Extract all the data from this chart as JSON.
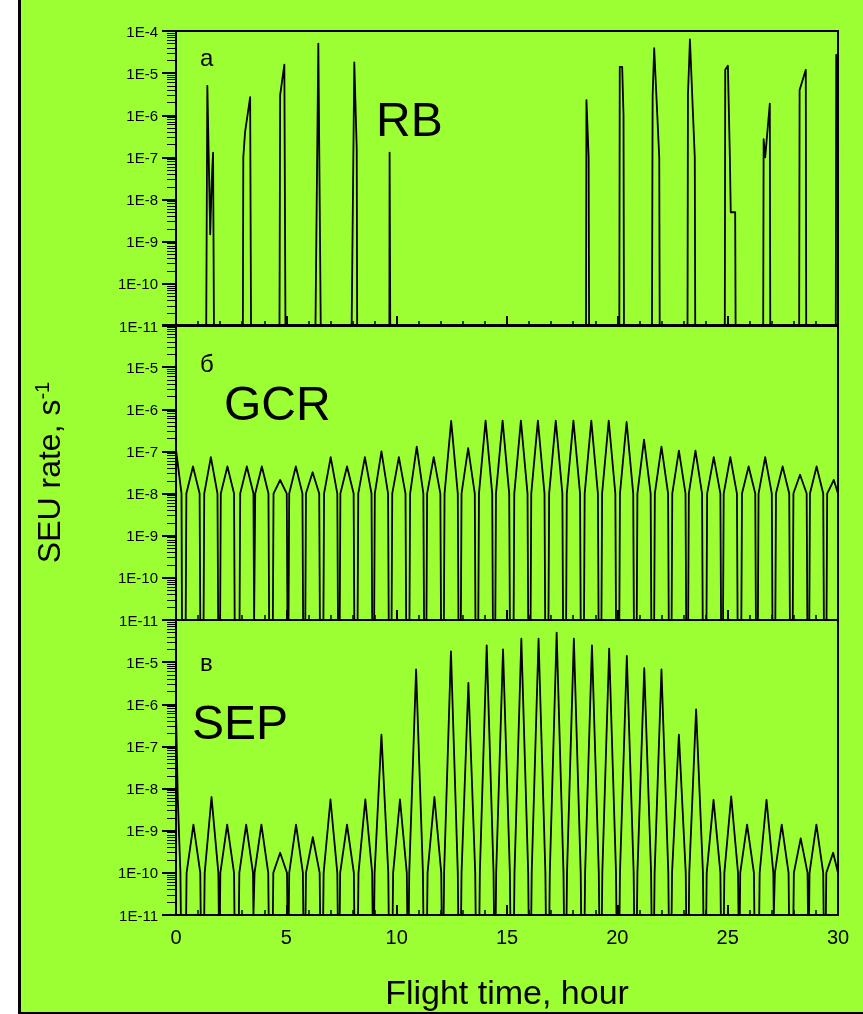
{
  "chart_data": [
    {
      "type": "line",
      "annotations": [
        "a",
        "RB"
      ],
      "xlim": [
        0,
        30
      ],
      "xticks": [
        0,
        5,
        10,
        15,
        20,
        25,
        30
      ],
      "log": true,
      "ylim": [
        1e-11,
        0.0001
      ],
      "yticks": [
        {
          "value": 1e-11,
          "label": "1E-11"
        },
        {
          "value": 1e-10,
          "label": "1E-10"
        },
        {
          "value": 1e-09,
          "label": "1E-9"
        },
        {
          "value": 1e-08,
          "label": "1E-8"
        },
        {
          "value": 1e-07,
          "label": "1E-7"
        },
        {
          "value": 1e-06,
          "label": "1E-6"
        },
        {
          "value": 1e-05,
          "label": "1E-5"
        },
        {
          "value": 0.0001,
          "label": "1E-4"
        }
      ],
      "tick_labels": "y",
      "marker": "none",
      "line_style": "solid",
      "series": [
        {
          "color": "#000000",
          "x": [
            1.37,
            1.42,
            1.55,
            1.62,
            1.68,
            1.72,
            3.03,
            3.05,
            3.13,
            3.36,
            3.4,
            4.69,
            4.72,
            4.91,
            4.96,
            6.32,
            6.45,
            6.56,
            7.96,
            8.08,
            8.19,
            8.21,
            9.67,
            9.68,
            9.71,
            18.58,
            18.6,
            18.7,
            18.72,
            20.09,
            20.11,
            20.22,
            20.28,
            20.3,
            21.57,
            21.6,
            21.67,
            21.9,
            21.92,
            23.18,
            23.2,
            23.29,
            23.51,
            23.53,
            24.87,
            24.89,
            25.01,
            25.1,
            25.14,
            25.34,
            25.36,
            26.61,
            26.63,
            26.7,
            26.91,
            26.93,
            28.24,
            28.26,
            28.54,
            28.56,
            29.9,
            29.92,
            30
          ],
          "values": [
            1e-11,
            5e-06,
            1.5e-09,
            3e-08,
            1.3e-07,
            1e-11,
            1e-11,
            1e-07,
            4e-07,
            2.7e-06,
            1e-11,
            1e-11,
            3e-06,
            1.6e-05,
            1e-11,
            1e-11,
            5e-05,
            1e-11,
            1e-11,
            1.8e-05,
            1.6e-07,
            1e-11,
            1e-11,
            1.3e-07,
            1e-11,
            1e-11,
            2.3e-06,
            1e-07,
            1e-11,
            1e-11,
            1.4e-05,
            1.4e-05,
            1e-06,
            1e-11,
            1e-11,
            3e-06,
            3.9e-05,
            1e-07,
            1e-11,
            1e-11,
            3e-06,
            6.3e-05,
            1e-07,
            1e-11,
            1e-11,
            1.2e-05,
            1.5e-05,
            1e-07,
            5e-09,
            5e-09,
            1e-11,
            1e-11,
            2.7e-07,
            1e-07,
            1.9e-06,
            1e-11,
            1e-11,
            4e-06,
            1.2e-05,
            1e-11,
            1e-11,
            2.7e-05,
            2.7e-05
          ]
        }
      ]
    },
    {
      "type": "line",
      "annotations": [
        "б",
        "GCR"
      ],
      "ylabel": "SEU rate, s$^{-1}$",
      "xlim": [
        0,
        30
      ],
      "xticks": [
        0,
        5,
        10,
        15,
        20,
        25,
        30
      ],
      "log": true,
      "ylim": [
        1e-11,
        0.0001
      ],
      "yticks": [
        {
          "value": 1e-11,
          "label": "1E-11"
        },
        {
          "value": 1e-10,
          "label": "1E-10"
        },
        {
          "value": 1e-09,
          "label": "1E-9"
        },
        {
          "value": 1e-08,
          "label": "1E-8"
        },
        {
          "value": 1e-07,
          "label": "1E-7"
        },
        {
          "value": 1e-06,
          "label": "1E-6"
        },
        {
          "value": 1e-05,
          "label": "1E-5"
        },
        {
          "value": 0.0001,
          "label": null
        }
      ],
      "tick_labels": "y",
      "marker": "none",
      "line_style": "solid",
      "series": [
        {
          "color": "#000000",
          "x": [
            0,
            0.25,
            0.27,
            0.44,
            0.47,
            0.77,
            1.07,
            1.1,
            1.25,
            1.28,
            1.58,
            1.88,
            1.91,
            2.0,
            2.03,
            2.33,
            2.63,
            2.66,
            2.88,
            2.91,
            3.21,
            3.51,
            3.54,
            3.56,
            3.59,
            3.89,
            4.19,
            4.22,
            4.39,
            4.42,
            4.72,
            5.02,
            5.05,
            5.1,
            5.13,
            5.43,
            5.73,
            5.76,
            5.86,
            5.89,
            6.19,
            6.49,
            6.52,
            6.68,
            6.71,
            7.01,
            7.31,
            7.34,
            7.42,
            7.45,
            7.75,
            8.05,
            8.08,
            8.23,
            8.26,
            8.56,
            8.86,
            8.89,
            8.98,
            9.01,
            9.31,
            9.61,
            9.64,
            9.77,
            9.8,
            10.1,
            10.4,
            10.43,
            10.58,
            10.61,
            10.91,
            11.21,
            11.24,
            11.35,
            11.38,
            11.68,
            11.98,
            12.01,
            12.14,
            12.17,
            12.47,
            12.77,
            12.8,
            12.91,
            12.94,
            13.24,
            13.54,
            13.57,
            13.7,
            13.73,
            14.03,
            14.33,
            14.36,
            14.47,
            14.5,
            14.8,
            15.1,
            15.13,
            15.3,
            15.33,
            15.63,
            15.93,
            15.96,
            16.07,
            16.1,
            16.4,
            16.7,
            16.73,
            16.88,
            16.91,
            17.21,
            17.51,
            17.54,
            17.68,
            17.71,
            18.01,
            18.31,
            18.34,
            18.49,
            18.52,
            18.82,
            19.12,
            19.15,
            19.28,
            19.31,
            19.61,
            19.91,
            19.94,
            20.09,
            20.12,
            20.42,
            20.72,
            20.75,
            20.88,
            20.91,
            21.21,
            21.51,
            21.54,
            21.67,
            21.7,
            22,
            22.3,
            22.33,
            22.46,
            22.49,
            22.79,
            23.09,
            23.12,
            23.21,
            23.24,
            23.54,
            23.84,
            23.87,
            24.04,
            24.07,
            24.37,
            24.67,
            24.7,
            24.79,
            24.82,
            25.12,
            25.42,
            25.45,
            25.62,
            25.65,
            25.95,
            26.25,
            26.28,
            26.37,
            26.4,
            26.7,
            27,
            27.03,
            27.16,
            27.19,
            27.49,
            27.79,
            27.82,
            27.95,
            27.98,
            28.28,
            28.58,
            28.61,
            28.7,
            28.73,
            29.03,
            29.33,
            29.36,
            29.48,
            29.51,
            29.81,
            30
          ],
          "values": [
            1.1e-07,
            1e-08,
            1e-11,
            1e-11,
            1e-08,
            4.4e-08,
            1e-08,
            1e-11,
            1e-11,
            1e-08,
            7.3e-08,
            1e-08,
            1e-11,
            1e-11,
            1e-08,
            4.4e-08,
            1e-08,
            1e-11,
            1e-11,
            1e-08,
            4.4e-08,
            1e-08,
            1e-11,
            1e-11,
            1e-08,
            4.4e-08,
            1e-08,
            1e-11,
            1e-11,
            1e-08,
            2.1e-08,
            1e-08,
            1e-11,
            1e-11,
            1e-08,
            4.4e-08,
            1e-08,
            1e-11,
            1e-11,
            1e-08,
            3.2e-08,
            1e-08,
            1e-11,
            1e-11,
            1e-08,
            7.3e-08,
            1e-08,
            1e-11,
            1e-11,
            1e-08,
            4.4e-08,
            1e-08,
            1e-11,
            1e-11,
            1e-08,
            7.3e-08,
            1e-08,
            1e-11,
            1e-11,
            1e-08,
            1e-07,
            1e-08,
            1e-11,
            1e-11,
            1e-08,
            7.3e-08,
            1e-08,
            1e-11,
            1e-11,
            1e-08,
            1.3e-07,
            1e-08,
            1e-11,
            1e-11,
            1e-08,
            7.3e-08,
            1e-08,
            1e-11,
            1e-11,
            1e-08,
            5.3e-07,
            1e-08,
            1e-11,
            1e-11,
            1e-08,
            1.2e-07,
            1e-08,
            1e-11,
            1e-11,
            1e-08,
            5.4e-07,
            1e-08,
            1e-11,
            1e-11,
            1e-08,
            5.4e-07,
            1e-08,
            1e-11,
            1e-11,
            1e-08,
            5.4e-07,
            1e-08,
            1e-11,
            1e-11,
            1e-08,
            5.4e-07,
            1e-08,
            1e-11,
            1e-11,
            1e-08,
            5.4e-07,
            1e-08,
            1e-11,
            1e-11,
            1e-08,
            5.4e-07,
            1e-08,
            1e-11,
            1e-11,
            1e-08,
            5.4e-07,
            1e-08,
            1e-11,
            1e-11,
            1e-08,
            5.4e-07,
            1e-08,
            1e-11,
            1e-11,
            1e-08,
            5e-07,
            1e-08,
            1e-11,
            1e-11,
            1e-08,
            1.9e-07,
            1e-08,
            1e-11,
            1e-11,
            1e-08,
            1.3e-07,
            1e-08,
            1e-11,
            1e-11,
            1e-08,
            1.05e-07,
            1e-08,
            1e-11,
            1e-11,
            1e-08,
            1.05e-07,
            1e-08,
            1e-11,
            1e-11,
            1e-08,
            7.3e-08,
            1e-08,
            1e-11,
            1e-11,
            1e-08,
            7.3e-08,
            1e-08,
            1e-11,
            1e-11,
            1e-08,
            4.4e-08,
            1e-08,
            1e-11,
            1e-11,
            1e-08,
            7.3e-08,
            1e-08,
            1e-11,
            1e-11,
            1e-08,
            4.4e-08,
            1e-08,
            1e-11,
            1e-11,
            1e-08,
            2.8e-08,
            1e-08,
            1e-11,
            1e-11,
            1e-08,
            4.4e-08,
            1e-08,
            1e-11,
            1e-11,
            1e-08,
            2.1e-08,
            1e-08
          ]
        }
      ]
    },
    {
      "type": "line",
      "annotations": [
        "в",
        "SEP"
      ],
      "xlabel": "Flight time, hour",
      "xlim": [
        0,
        30
      ],
      "xticks": [
        0,
        5,
        10,
        15,
        20,
        25,
        30
      ],
      "log": true,
      "ylim": [
        1e-11,
        0.0001
      ],
      "yticks": [
        {
          "value": 1e-11,
          "label": "1E-11"
        },
        {
          "value": 1e-10,
          "label": "1E-10"
        },
        {
          "value": 1e-09,
          "label": "1E-9"
        },
        {
          "value": 1e-08,
          "label": "1E-8"
        },
        {
          "value": 1e-07,
          "label": "1E-7"
        },
        {
          "value": 1e-06,
          "label": "1E-6"
        },
        {
          "value": 1e-05,
          "label": "1E-5"
        },
        {
          "value": 0.0001,
          "label": null
        }
      ],
      "marker": "none",
      "line_style": "solid",
      "series": [
        {
          "color": "#000000",
          "x": [
            0,
            0.08,
            0.2,
            0.22,
            0.46,
            0.48,
            0.79,
            1.1,
            1.12,
            1.28,
            1.3,
            1.61,
            1.92,
            1.94,
            1.99,
            2.01,
            2.32,
            2.63,
            2.65,
            2.85,
            2.87,
            3.18,
            3.49,
            3.51,
            3.54,
            3.56,
            3.87,
            4.18,
            4.2,
            4.39,
            4.41,
            4.72,
            5.03,
            5.05,
            5.11,
            5.13,
            5.44,
            5.75,
            5.77,
            5.87,
            5.89,
            6.2,
            6.51,
            6.53,
            6.67,
            6.69,
            7,
            7.31,
            7.33,
            7.42,
            7.44,
            7.75,
            8.06,
            8.08,
            8.25,
            8.27,
            8.58,
            8.89,
            8.91,
            8.98,
            9,
            9.31,
            9.62,
            9.64,
            9.82,
            9.84,
            10.15,
            10.46,
            10.48,
            10.55,
            10.57,
            10.88,
            11.19,
            11.21,
            11.38,
            11.4,
            11.71,
            12.02,
            12.04,
            12.13,
            12.15,
            12.46,
            12.77,
            12.79,
            12.92,
            12.94,
            13.25,
            13.56,
            13.58,
            13.75,
            13.77,
            14.08,
            14.39,
            14.41,
            14.49,
            14.51,
            14.82,
            15.13,
            15.15,
            15.32,
            15.34,
            15.65,
            15.96,
            15.98,
            16.1,
            16.12,
            16.43,
            16.74,
            16.76,
            16.92,
            16.94,
            17.25,
            17.56,
            17.58,
            17.7,
            17.72,
            18.03,
            18.34,
            18.36,
            18.52,
            18.54,
            18.85,
            19.16,
            19.18,
            19.3,
            19.32,
            19.63,
            19.94,
            19.96,
            20.1,
            20.12,
            20.43,
            20.74,
            20.76,
            20.89,
            20.91,
            21.22,
            21.53,
            21.55,
            21.67,
            21.69,
            22,
            22.31,
            22.33,
            22.46,
            22.48,
            22.79,
            23.1,
            23.12,
            23.24,
            23.26,
            23.57,
            23.88,
            23.9,
            24.03,
            24.05,
            24.36,
            24.67,
            24.69,
            24.83,
            24.85,
            25.16,
            25.47,
            25.49,
            25.55,
            25.57,
            25.88,
            26.19,
            26.21,
            26.43,
            26.45,
            26.76,
            27.07,
            27.09,
            27.12,
            27.14,
            27.45,
            27.76,
            27.78,
            27.98,
            28,
            28.31,
            28.62,
            28.64,
            28.69,
            28.71,
            29.02,
            29.33,
            29.35,
            29.45,
            29.47,
            29.78,
            30
          ],
          "values": [
            7.2e-07,
            6e-09,
            1e-10,
            1e-11,
            1e-11,
            1e-10,
            1.4e-09,
            1e-10,
            1e-11,
            1e-11,
            1e-10,
            6.3e-09,
            1e-10,
            1e-11,
            1e-11,
            1e-10,
            1.4e-09,
            1e-10,
            1e-11,
            1e-11,
            1e-10,
            1.4e-09,
            1e-10,
            1e-11,
            1e-11,
            1e-10,
            1.4e-09,
            1e-10,
            1e-11,
            1e-11,
            1e-10,
            3e-10,
            1e-10,
            1e-11,
            1e-11,
            1e-10,
            1.4e-09,
            1e-10,
            1e-11,
            1e-11,
            1e-10,
            7e-10,
            1e-10,
            1e-11,
            1e-11,
            1e-10,
            5.5e-09,
            1e-10,
            1e-11,
            1e-11,
            1e-10,
            1.4e-09,
            1e-10,
            1e-11,
            1e-11,
            1e-10,
            5.5e-09,
            1e-10,
            1e-11,
            1e-11,
            1e-10,
            1.9e-07,
            1e-10,
            1e-11,
            1e-11,
            1e-10,
            5.5e-09,
            1e-10,
            1e-11,
            1e-11,
            1e-10,
            6.7e-06,
            1e-10,
            1e-11,
            1e-11,
            1e-10,
            6.3e-09,
            1e-10,
            1e-11,
            1e-11,
            1e-10,
            1.8e-05,
            1e-10,
            1e-11,
            1e-11,
            1e-10,
            3.2e-06,
            1e-10,
            1e-11,
            1e-11,
            1e-10,
            2.5e-05,
            1e-10,
            1e-11,
            1e-11,
            1e-10,
            2e-05,
            1e-10,
            1e-11,
            1e-11,
            1e-10,
            3.6e-05,
            1e-10,
            1e-11,
            1e-11,
            1e-10,
            3.6e-05,
            1e-10,
            1e-11,
            1e-11,
            1e-10,
            5e-05,
            1e-10,
            1e-11,
            1e-11,
            1e-10,
            3.6e-05,
            1e-10,
            1e-11,
            1e-11,
            1e-10,
            2.5e-05,
            1e-10,
            1e-11,
            1e-11,
            1e-10,
            2.1e-05,
            1e-10,
            1e-11,
            1e-11,
            1e-10,
            1.4e-05,
            1e-10,
            1e-11,
            1e-11,
            1e-10,
            7.2e-06,
            1e-10,
            1e-11,
            1e-11,
            1e-10,
            6.7e-06,
            1e-10,
            1e-11,
            1e-11,
            1e-10,
            1.9e-07,
            1e-10,
            1e-11,
            1e-11,
            1e-10,
            7.6e-07,
            1e-10,
            1e-11,
            1e-11,
            1e-10,
            5.4e-09,
            1e-10,
            1e-11,
            1e-11,
            1e-10,
            6.5e-09,
            1e-10,
            1e-11,
            1e-11,
            1e-10,
            1.4e-09,
            1e-10,
            1e-11,
            1e-11,
            1e-10,
            5.4e-09,
            1e-10,
            1e-11,
            1e-11,
            1e-10,
            1.4e-09,
            1e-10,
            1e-11,
            1e-11,
            1e-10,
            6.6e-10,
            1e-10,
            1e-11,
            1e-11,
            1e-10,
            1.4e-09,
            1e-10,
            1e-11,
            1e-11,
            1e-10,
            3e-10,
            1e-10
          ]
        }
      ]
    }
  ]
}
